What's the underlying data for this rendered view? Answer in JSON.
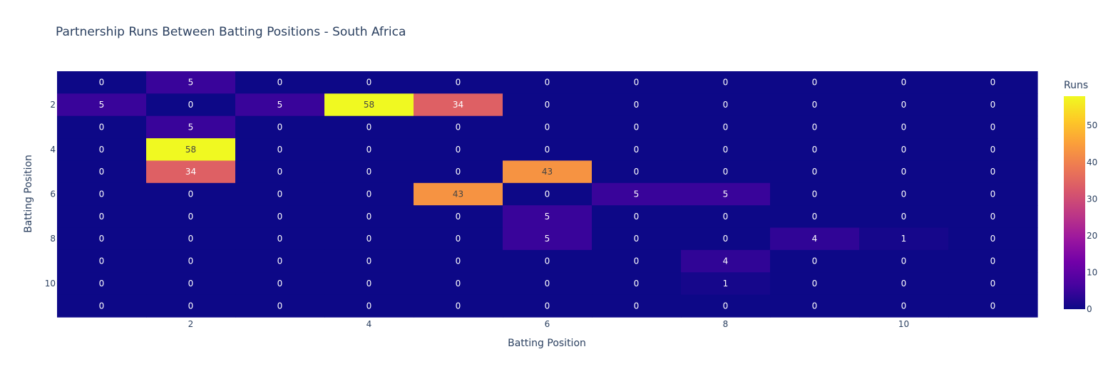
{
  "chart_data": {
    "type": "heatmap",
    "title": "Partnership Runs Between Batting Positions - South Africa",
    "xlabel": "Batting Position",
    "ylabel": "Batting Position",
    "x": [
      1,
      2,
      3,
      4,
      5,
      6,
      7,
      8,
      9,
      10,
      11
    ],
    "y": [
      1,
      2,
      3,
      4,
      5,
      6,
      7,
      8,
      9,
      10,
      11
    ],
    "x_tick_labels": [
      "2",
      "4",
      "6",
      "8",
      "10"
    ],
    "x_tick_values": [
      2,
      4,
      6,
      8,
      10
    ],
    "y_tick_labels": [
      "2",
      "4",
      "6",
      "8",
      "10"
    ],
    "y_tick_values": [
      2,
      4,
      6,
      8,
      10
    ],
    "z": [
      [
        0,
        5,
        0,
        0,
        0,
        0,
        0,
        0,
        0,
        0,
        0
      ],
      [
        5,
        0,
        5,
        58,
        34,
        0,
        0,
        0,
        0,
        0,
        0
      ],
      [
        0,
        5,
        0,
        0,
        0,
        0,
        0,
        0,
        0,
        0,
        0
      ],
      [
        0,
        58,
        0,
        0,
        0,
        0,
        0,
        0,
        0,
        0,
        0
      ],
      [
        0,
        34,
        0,
        0,
        0,
        43,
        0,
        0,
        0,
        0,
        0
      ],
      [
        0,
        0,
        0,
        0,
        43,
        0,
        5,
        5,
        0,
        0,
        0
      ],
      [
        0,
        0,
        0,
        0,
        0,
        5,
        0,
        0,
        0,
        0,
        0
      ],
      [
        0,
        0,
        0,
        0,
        0,
        5,
        0,
        0,
        4,
        1,
        0
      ],
      [
        0,
        0,
        0,
        0,
        0,
        0,
        0,
        4,
        0,
        0,
        0
      ],
      [
        0,
        0,
        0,
        0,
        0,
        0,
        0,
        1,
        0,
        0,
        0
      ],
      [
        0,
        0,
        0,
        0,
        0,
        0,
        0,
        0,
        0,
        0,
        0
      ]
    ],
    "yaxis_reversed": true,
    "zmin": 0,
    "zmax": 58,
    "colorscale": "plasma",
    "colorbar": {
      "title": "Runs",
      "tick_labels": [
        "0",
        "10",
        "20",
        "30",
        "40",
        "50"
      ],
      "tick_values": [
        0,
        10,
        20,
        30,
        40,
        50
      ]
    },
    "grid": false
  }
}
